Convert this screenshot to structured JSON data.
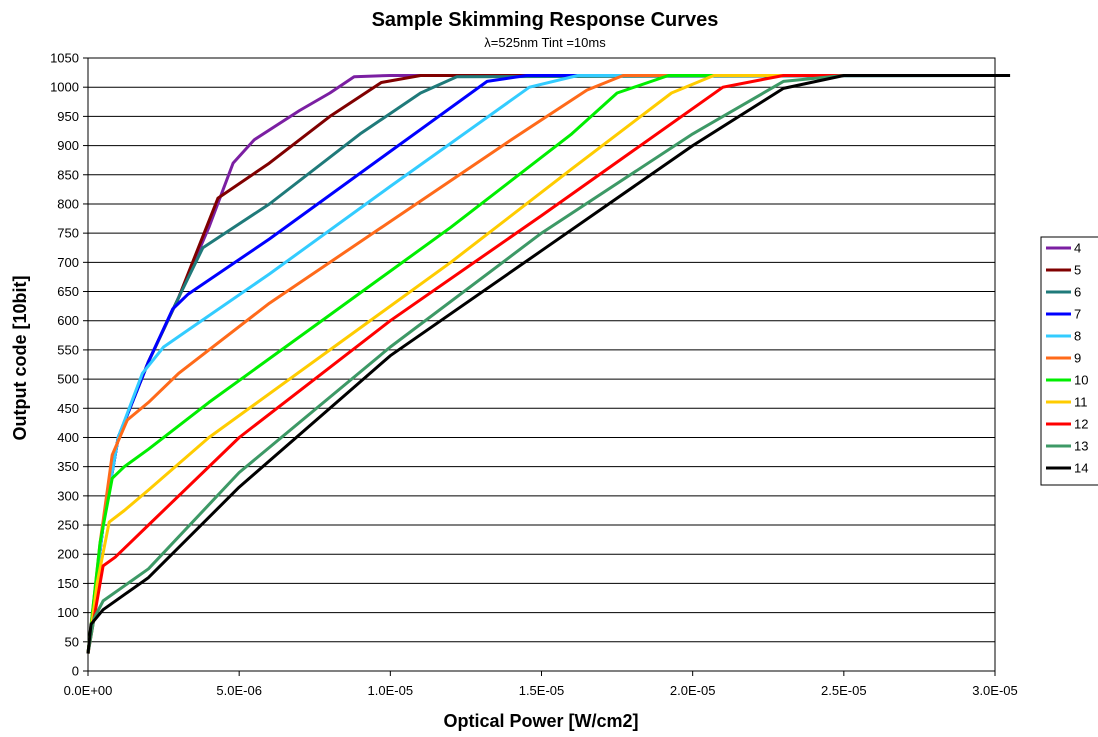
{
  "chart_data": {
    "type": "line",
    "title": "Sample Skimming Response Curves",
    "subtitle": "λ=525nm Tint =10ms",
    "xlabel": "Optical Power [W/cm2]",
    "ylabel": "Output code [10bit]",
    "xlim": [
      0,
      3e-05
    ],
    "ylim": [
      0,
      1050
    ],
    "x_ticks": [
      0,
      5e-06,
      1e-05,
      1.5e-05,
      2e-05,
      2.5e-05,
      3e-05
    ],
    "x_tick_labels": [
      "0.0E+00",
      "5.0E-06",
      "1.0E-05",
      "1.5E-05",
      "2.0E-05",
      "2.5E-05",
      "3.0E-05"
    ],
    "y_ticks": [
      0,
      50,
      100,
      150,
      200,
      250,
      300,
      350,
      400,
      450,
      500,
      550,
      600,
      650,
      700,
      750,
      800,
      850,
      900,
      950,
      1000,
      1050
    ],
    "y_tick_labels": [
      "0",
      "50",
      "100",
      "150",
      "200",
      "250",
      "300",
      "350",
      "400",
      "450",
      "500",
      "550",
      "600",
      "650",
      "700",
      "750",
      "800",
      "850",
      "900",
      "950",
      "1000",
      "1050"
    ],
    "grid": "horizontal",
    "legend_position": "right",
    "series": [
      {
        "name": "4",
        "color": "#7B1FA2",
        "x": [
          0,
          5e-07,
          1e-06,
          2e-06,
          3e-06,
          4e-06,
          4.8e-06,
          5.5e-06,
          7e-06,
          8e-06,
          8.8e-06,
          1e-05,
          3e-05
        ],
        "y": [
          30,
          250,
          400,
          530,
          640,
          760,
          870,
          910,
          960,
          990,
          1018,
          1020,
          1020
        ]
      },
      {
        "name": "5",
        "color": "#800000",
        "x": [
          0,
          5e-07,
          1e-06,
          2e-06,
          3e-06,
          4.3e-06,
          6e-06,
          8e-06,
          9.7e-06,
          1.1e-05,
          3e-05
        ],
        "y": [
          30,
          250,
          400,
          530,
          640,
          810,
          870,
          950,
          1008,
          1020,
          1020
        ]
      },
      {
        "name": "6",
        "color": "#1F7A7A",
        "x": [
          0,
          5e-07,
          1e-06,
          2e-06,
          3e-06,
          3.8e-06,
          6e-06,
          9e-06,
          1.1e-05,
          1.22e-05,
          3e-05
        ],
        "y": [
          30,
          250,
          400,
          530,
          640,
          725,
          800,
          920,
          990,
          1018,
          1020
        ]
      },
      {
        "name": "7",
        "color": "#0000FF",
        "x": [
          0,
          5e-07,
          1e-06,
          2e-06,
          2.8e-06,
          3.3e-06,
          6e-06,
          1e-05,
          1.32e-05,
          1.45e-05,
          3e-05
        ],
        "y": [
          30,
          250,
          400,
          530,
          620,
          645,
          740,
          890,
          1010,
          1020,
          1020
        ]
      },
      {
        "name": "8",
        "color": "#33CCFF",
        "x": [
          0,
          5e-07,
          1e-06,
          1.8e-06,
          2.5e-06,
          3.2e-06,
          6e-06,
          1e-05,
          1.46e-05,
          1.62e-05,
          3e-05
        ],
        "y": [
          30,
          250,
          400,
          510,
          555,
          580,
          680,
          830,
          1000,
          1020,
          1020
        ]
      },
      {
        "name": "9",
        "color": "#FF6A1A",
        "x": [
          0,
          4e-07,
          8e-07,
          1.3e-06,
          2e-06,
          3e-06,
          6e-06,
          1e-05,
          1.4e-05,
          1.65e-05,
          1.77e-05,
          3e-05
        ],
        "y": [
          30,
          220,
          370,
          430,
          460,
          510,
          630,
          770,
          910,
          995,
          1020,
          1020
        ]
      },
      {
        "name": "10",
        "color": "#00EE00",
        "x": [
          0,
          4e-07,
          8e-07,
          1.2e-06,
          2e-06,
          4e-06,
          8e-06,
          1.2e-05,
          1.6e-05,
          1.75e-05,
          1.92e-05,
          3e-05
        ],
        "y": [
          30,
          220,
          330,
          350,
          380,
          460,
          610,
          760,
          920,
          990,
          1020,
          1020
        ]
      },
      {
        "name": "11",
        "color": "#FFCC00",
        "x": [
          0,
          3e-07,
          7e-07,
          1.2e-06,
          2e-06,
          4e-06,
          8e-06,
          1.2e-05,
          1.6e-05,
          1.93e-05,
          2.07e-05,
          3e-05
        ],
        "y": [
          30,
          150,
          255,
          275,
          310,
          400,
          550,
          700,
          860,
          990,
          1020,
          1020
        ]
      },
      {
        "name": "12",
        "color": "#FF0000",
        "x": [
          0,
          2e-07,
          5e-07,
          9e-07,
          2e-06,
          5e-06,
          1e-05,
          1.5e-05,
          1.8e-05,
          2.1e-05,
          2.3e-05,
          3e-05
        ],
        "y": [
          30,
          90,
          180,
          195,
          250,
          400,
          600,
          780,
          890,
          1000,
          1020,
          1020
        ]
      },
      {
        "name": "13",
        "color": "#3D9966",
        "x": [
          0,
          2e-07,
          5e-07,
          2e-06,
          5e-06,
          1e-05,
          1.5e-05,
          2e-05,
          2.3e-05,
          2.5e-05,
          3e-05
        ],
        "y": [
          30,
          90,
          120,
          175,
          340,
          555,
          750,
          920,
          1010,
          1020,
          1020
        ]
      },
      {
        "name": "14",
        "color": "#000000",
        "x": [
          0,
          1e-07,
          5e-07,
          2e-06,
          5e-06,
          1e-05,
          1.5e-05,
          2e-05,
          2.3e-05,
          2.5e-05,
          3.05e-05
        ],
        "y": [
          30,
          80,
          105,
          160,
          315,
          540,
          720,
          900,
          998,
          1020,
          1020
        ]
      }
    ]
  }
}
